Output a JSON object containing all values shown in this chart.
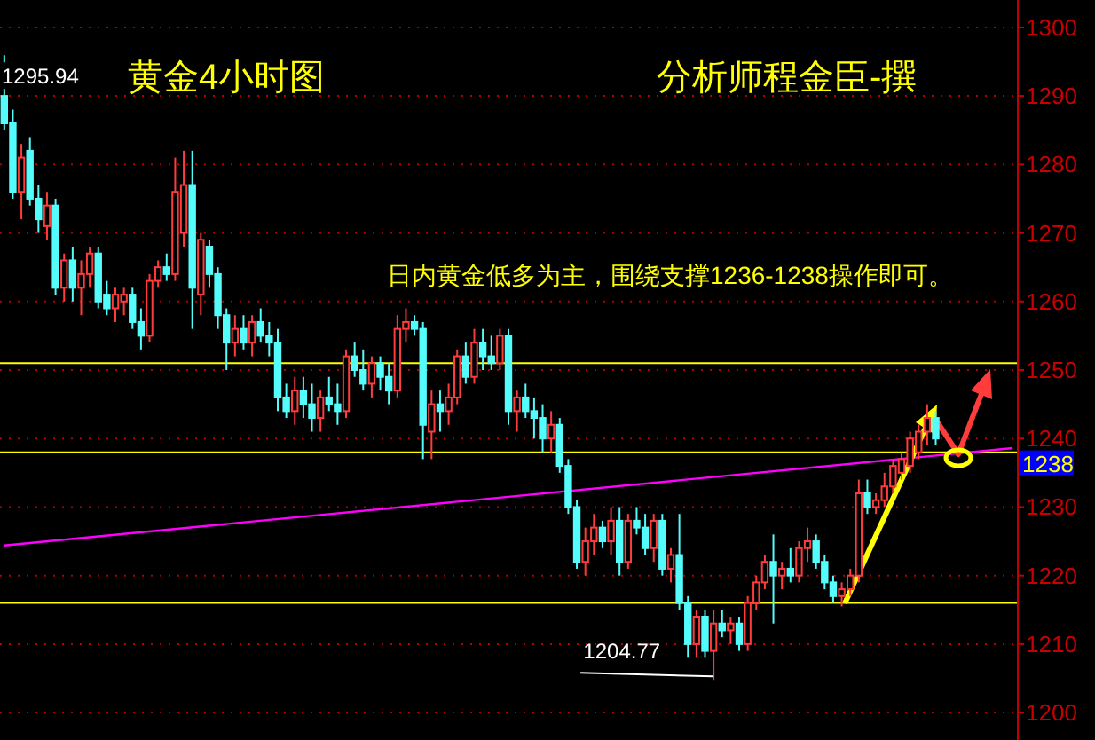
{
  "chart_data": {
    "type": "candlestick",
    "title": "黄金4小时图",
    "subtitle": "分析师程金臣-撰",
    "annotations": [
      "日内黄金低多为主，围绕支撑1236-1238操作即可。",
      "1295.94",
      "1204.77"
    ],
    "categories": [
      null,
      null,
      null,
      null,
      null,
      null,
      null,
      null,
      null,
      null,
      null,
      null,
      null,
      null,
      null,
      null,
      null,
      null,
      null,
      null,
      null,
      null,
      null,
      null,
      null,
      null,
      null,
      null,
      null,
      null,
      null,
      null,
      null,
      null,
      null,
      null,
      null,
      null,
      null,
      null,
      null,
      null,
      null,
      null,
      null,
      null,
      null,
      null,
      null,
      null,
      null,
      null,
      null,
      null,
      null,
      null,
      null,
      null,
      null,
      null,
      null,
      null,
      null,
      null,
      null,
      null,
      null,
      null,
      null,
      null,
      null,
      null,
      null,
      null,
      null,
      null,
      null,
      null,
      null,
      null,
      null,
      null,
      null,
      null,
      null,
      null,
      null,
      null,
      null,
      null,
      null,
      null,
      null,
      null,
      null,
      null,
      null,
      null,
      null,
      null,
      null,
      null,
      null,
      null,
      null,
      null,
      null,
      null,
      null,
      null,
      null,
      null,
      null,
      null,
      null,
      null,
      null,
      null,
      null
    ],
    "ohlc": [
      [
        1290,
        1295.94,
        1285,
        1286
      ],
      [
        1286,
        1288,
        1275,
        1276
      ],
      [
        1276,
        1283,
        1272,
        1281
      ],
      [
        1282,
        1284,
        1274,
        1275
      ],
      [
        1275,
        1277,
        1270,
        1272
      ],
      [
        1271,
        1276,
        1269,
        1274
      ],
      [
        1274,
        1275,
        1261,
        1262
      ],
      [
        1262,
        1267,
        1260,
        1266
      ],
      [
        1266,
        1268,
        1260,
        1262
      ],
      [
        1262,
        1266,
        1258,
        1264
      ],
      [
        1264,
        1268,
        1262,
        1267
      ],
      [
        1267,
        1268,
        1259,
        1260
      ],
      [
        1261,
        1263,
        1258,
        1259
      ],
      [
        1259,
        1262,
        1257,
        1261
      ],
      [
        1260,
        1262,
        1258,
        1261
      ],
      [
        1261,
        1262,
        1256,
        1257
      ],
      [
        1257,
        1259,
        1253,
        1255
      ],
      [
        1255,
        1264,
        1254,
        1263
      ],
      [
        1263,
        1266,
        1262,
        1265
      ],
      [
        1265,
        1267,
        1263,
        1264
      ],
      [
        1264,
        1281,
        1263,
        1276
      ],
      [
        1270,
        1282,
        1268,
        1277
      ],
      [
        1277,
        1282,
        1256,
        1262
      ],
      [
        1261,
        1270,
        1258,
        1269
      ],
      [
        1268,
        1269,
        1262,
        1264
      ],
      [
        1264,
        1265,
        1256,
        1258
      ],
      [
        1258,
        1259,
        1250,
        1254
      ],
      [
        1254,
        1258,
        1252,
        1256
      ],
      [
        1256,
        1258,
        1253,
        1254
      ],
      [
        1254,
        1258,
        1252,
        1257
      ],
      [
        1257,
        1259,
        1254,
        1255
      ],
      [
        1255,
        1257,
        1252,
        1254
      ],
      [
        1254,
        1256,
        1244,
        1246
      ],
      [
        1246,
        1248,
        1243,
        1244
      ],
      [
        1244,
        1249,
        1242,
        1247
      ],
      [
        1247,
        1249,
        1243,
        1245
      ],
      [
        1245,
        1248,
        1241,
        1243
      ],
      [
        1243,
        1247,
        1241,
        1246
      ],
      [
        1246,
        1249,
        1244,
        1245
      ],
      [
        1245,
        1248,
        1242,
        1244
      ],
      [
        1244,
        1253,
        1243,
        1252
      ],
      [
        1252,
        1254,
        1249,
        1250
      ],
      [
        1250,
        1253,
        1247,
        1248
      ],
      [
        1248,
        1252,
        1246,
        1251
      ],
      [
        1251,
        1252,
        1247,
        1249
      ],
      [
        1249,
        1251,
        1245,
        1247
      ],
      [
        1247,
        1258,
        1246,
        1256
      ],
      [
        1256,
        1259,
        1254,
        1257
      ],
      [
        1257,
        1258,
        1255,
        1256
      ],
      [
        1256,
        1257,
        1237,
        1242
      ],
      [
        1241,
        1247,
        1237,
        1245
      ],
      [
        1245,
        1247,
        1241,
        1244
      ],
      [
        1244,
        1248,
        1242,
        1246
      ],
      [
        1246,
        1253,
        1245,
        1252
      ],
      [
        1252,
        1254,
        1248,
        1249
      ],
      [
        1249,
        1256,
        1248,
        1254
      ],
      [
        1254,
        1256,
        1250,
        1252
      ],
      [
        1252,
        1255,
        1250,
        1251
      ],
      [
        1251,
        1256,
        1250,
        1255
      ],
      [
        1255,
        1256,
        1242,
        1244
      ],
      [
        1244,
        1247,
        1241,
        1246
      ],
      [
        1246,
        1248,
        1243,
        1244
      ],
      [
        1244,
        1246,
        1240,
        1243
      ],
      [
        1243,
        1245,
        1238,
        1240
      ],
      [
        1240,
        1244,
        1238,
        1242
      ],
      [
        1242,
        1243,
        1235,
        1236
      ],
      [
        1236,
        1237,
        1229,
        1230
      ],
      [
        1230,
        1231,
        1221,
        1222
      ],
      [
        1222,
        1227,
        1220,
        1225
      ],
      [
        1225,
        1229,
        1223,
        1227
      ],
      [
        1227,
        1228,
        1224,
        1225
      ],
      [
        1225,
        1230,
        1223,
        1228
      ],
      [
        1228,
        1230,
        1220,
        1222
      ],
      [
        1222,
        1229,
        1221,
        1228
      ],
      [
        1228,
        1230,
        1226,
        1227
      ],
      [
        1227,
        1229,
        1223,
        1224
      ],
      [
        1224,
        1229,
        1222,
        1228
      ],
      [
        1228,
        1229,
        1220,
        1221
      ],
      [
        1221,
        1224,
        1219,
        1223
      ],
      [
        1223,
        1229,
        1215,
        1216
      ],
      [
        1216,
        1217,
        1208,
        1210
      ],
      [
        1210,
        1215,
        1208,
        1214
      ],
      [
        1214,
        1215,
        1208,
        1209
      ],
      [
        1209,
        1215,
        1204.77,
        1213
      ],
      [
        1213,
        1215,
        1211,
        1212
      ],
      [
        1212,
        1214,
        1210,
        1213
      ],
      [
        1213,
        1214,
        1209,
        1210
      ],
      [
        1210,
        1217,
        1209,
        1216
      ],
      [
        1216,
        1220,
        1215,
        1219
      ],
      [
        1219,
        1223,
        1218,
        1222
      ],
      [
        1222,
        1226,
        1213,
        1220
      ],
      [
        1220,
        1222,
        1218,
        1221
      ],
      [
        1221,
        1224,
        1219,
        1220
      ],
      [
        1220,
        1225,
        1219,
        1224
      ],
      [
        1224,
        1227,
        1222,
        1225
      ],
      [
        1225,
        1226,
        1221,
        1222
      ],
      [
        1222,
        1223,
        1218,
        1219
      ],
      [
        1219,
        1220,
        1216,
        1217
      ],
      [
        1217,
        1219,
        1215.5,
        1218
      ],
      [
        1218,
        1221,
        1217,
        1220
      ],
      [
        1220,
        1234,
        1219,
        1232
      ],
      [
        1232,
        1234,
        1229,
        1230
      ],
      [
        1230,
        1232,
        1229,
        1231
      ],
      [
        1231,
        1235,
        1230,
        1233
      ],
      [
        1233,
        1237,
        1232,
        1236
      ],
      [
        1235,
        1238,
        1234,
        1237
      ],
      [
        1236,
        1241,
        1235,
        1240
      ],
      [
        1238,
        1242,
        1237,
        1241
      ],
      [
        1241,
        1245,
        1239,
        1243
      ],
      [
        1243,
        1244,
        1239,
        1240
      ],
      null,
      null,
      null,
      null,
      null,
      null,
      null,
      null,
      null
    ],
    "series": [
      {
        "type": "line",
        "color": "#ff00ff",
        "values": [
          1224.4,
          null,
          null,
          null,
          null,
          null,
          null,
          null,
          null,
          null,
          null,
          null,
          null,
          null,
          null,
          null,
          null,
          null,
          null,
          null,
          null,
          null,
          null,
          null,
          null,
          null,
          null,
          null,
          null,
          null,
          null,
          null,
          null,
          null,
          null,
          null,
          null,
          null,
          null,
          null,
          null,
          null,
          null,
          null,
          null,
          null,
          null,
          null,
          null,
          null,
          null,
          null,
          null,
          null,
          null,
          null,
          null,
          null,
          null,
          null,
          null,
          null,
          null,
          null,
          null,
          null,
          null,
          null,
          null,
          null,
          null,
          null,
          null,
          null,
          null,
          null,
          null,
          null,
          null,
          null,
          null,
          null,
          null,
          null,
          null,
          null,
          null,
          null,
          null,
          null,
          null,
          null,
          null,
          null,
          null,
          null,
          null,
          null,
          null,
          null,
          null,
          null,
          null,
          null,
          null,
          null,
          null,
          null,
          null,
          null,
          null,
          null,
          null,
          null,
          null,
          null,
          null,
          null,
          1238.6
        ]
      }
    ],
    "ylim": [
      1196,
      1304
    ],
    "yticks": [
      1200,
      1210,
      1220,
      1230,
      1240,
      1250,
      1260,
      1270,
      1280,
      1290,
      1300
    ],
    "grid": "y",
    "ref_lines": [
      {
        "axis": "y",
        "value": 1251,
        "color": "#ffff00"
      },
      {
        "axis": "y",
        "value": 1238,
        "label": "1238",
        "color": "#ffff00"
      },
      {
        "axis": "y",
        "value": 1216,
        "color": "#ffff00"
      }
    ]
  }
}
